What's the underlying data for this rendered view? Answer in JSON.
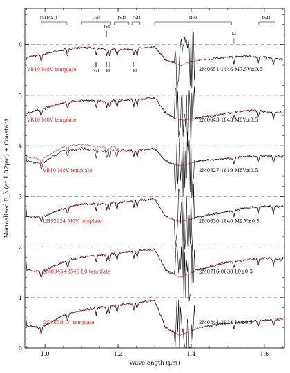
{
  "chart_data": {
    "type": "line",
    "xlabel": "Wavelength (μm)",
    "ylabel": "Normalised F_λ (at 1.32μm) + Constant",
    "xlim": [
      0.945,
      1.655
    ],
    "ylim": [
      0,
      6.72
    ],
    "x_ticks": [
      "1.0",
      "1.2",
      "1.4",
      "1.6"
    ],
    "y_ticks": [
      "0",
      "1",
      "2",
      "3",
      "4",
      "5",
      "6"
    ],
    "x_tick_values": [
      1.0,
      1.2,
      1.4,
      1.6
    ],
    "y_tick_values": [
      0,
      1,
      2,
      3,
      4,
      5,
      6
    ],
    "dashed_reference_levels": [
      1,
      2,
      3,
      4,
      5,
      6
    ],
    "spectra": [
      {
        "object": "2M0651-1446 M7.5V±0.5",
        "template": "VB10 M8V template",
        "offset": 5,
        "ref_value": 1.0,
        "points": [
          [
            0.95,
            0.75
          ],
          [
            0.99,
            0.8
          ],
          [
            1.05,
            0.9
          ],
          [
            1.1,
            0.95
          ],
          [
            1.15,
            0.92
          ],
          [
            1.2,
            0.9
          ],
          [
            1.25,
            0.92
          ],
          [
            1.3,
            0.95
          ],
          [
            1.33,
            0.7
          ],
          [
            1.37,
            0.6
          ],
          [
            1.42,
            0.7
          ],
          [
            1.5,
            0.75
          ],
          [
            1.55,
            0.78
          ],
          [
            1.6,
            0.75
          ],
          [
            1.655,
            0.7
          ]
        ]
      },
      {
        "object": "2M0643-1843 M8V±0.5",
        "template": "VB10 M8V template",
        "offset": 4,
        "ref_value": 1.0,
        "points": [
          [
            0.95,
            0.65
          ],
          [
            0.99,
            0.72
          ],
          [
            1.05,
            0.85
          ],
          [
            1.1,
            0.9
          ],
          [
            1.15,
            0.88
          ],
          [
            1.2,
            0.9
          ],
          [
            1.25,
            0.92
          ],
          [
            1.3,
            0.95
          ],
          [
            1.33,
            0.65
          ],
          [
            1.37,
            0.5
          ],
          [
            1.42,
            0.55
          ],
          [
            1.5,
            0.65
          ],
          [
            1.55,
            0.7
          ],
          [
            1.6,
            0.68
          ],
          [
            1.655,
            0.65
          ]
        ]
      },
      {
        "object": "2M0827-1619 M8V±0.5",
        "template": "VB10 M8V template",
        "offset": 3,
        "ref_value": 1.0,
        "points": [
          [
            0.95,
            0.7
          ],
          [
            0.99,
            0.65
          ],
          [
            1.05,
            0.9
          ],
          [
            1.1,
            0.95
          ],
          [
            1.15,
            0.9
          ],
          [
            1.2,
            0.9
          ],
          [
            1.25,
            0.92
          ],
          [
            1.3,
            0.95
          ],
          [
            1.33,
            0.7
          ],
          [
            1.37,
            0.6
          ],
          [
            1.42,
            0.7
          ],
          [
            1.5,
            0.75
          ],
          [
            1.55,
            0.78
          ],
          [
            1.6,
            0.8
          ],
          [
            1.655,
            0.78
          ]
        ]
      },
      {
        "object": "2M0630-1840 M9.V±0.5",
        "template": "LHS2924 M9V template",
        "offset": 2,
        "ref_value": 1.0,
        "points": [
          [
            0.95,
            0.6
          ],
          [
            0.99,
            0.6
          ],
          [
            1.05,
            0.75
          ],
          [
            1.1,
            0.85
          ],
          [
            1.15,
            0.85
          ],
          [
            1.2,
            0.88
          ],
          [
            1.25,
            0.92
          ],
          [
            1.3,
            0.95
          ],
          [
            1.33,
            0.6
          ],
          [
            1.37,
            0.5
          ],
          [
            1.42,
            0.6
          ],
          [
            1.5,
            0.7
          ],
          [
            1.55,
            0.78
          ],
          [
            1.6,
            0.8
          ],
          [
            1.655,
            0.8
          ]
        ]
      },
      {
        "object": "2M0716-0630 L0±0.5",
        "template": "2M0345+2540 L0 template",
        "offset": 1,
        "ref_value": 1.0,
        "points": [
          [
            0.95,
            0.55
          ],
          [
            0.99,
            0.5
          ],
          [
            1.05,
            0.7
          ],
          [
            1.1,
            0.8
          ],
          [
            1.15,
            0.85
          ],
          [
            1.2,
            0.88
          ],
          [
            1.25,
            0.92
          ],
          [
            1.3,
            0.95
          ],
          [
            1.33,
            0.55
          ],
          [
            1.37,
            0.4
          ],
          [
            1.42,
            0.55
          ],
          [
            1.5,
            0.7
          ],
          [
            1.55,
            0.75
          ],
          [
            1.6,
            0.78
          ],
          [
            1.655,
            0.75
          ]
        ]
      },
      {
        "object": "2M0844-2924 L4±0.5",
        "template": "GD165B L4 template",
        "offset": 0,
        "ref_value": 1.0,
        "points": [
          [
            0.95,
            0.45
          ],
          [
            0.99,
            0.4
          ],
          [
            1.05,
            0.65
          ],
          [
            1.1,
            0.75
          ],
          [
            1.15,
            0.8
          ],
          [
            1.2,
            0.85
          ],
          [
            1.25,
            0.9
          ],
          [
            1.3,
            0.95
          ],
          [
            1.33,
            0.4
          ],
          [
            1.37,
            0.25
          ],
          [
            1.42,
            0.4
          ],
          [
            1.5,
            0.5
          ],
          [
            1.55,
            0.52
          ],
          [
            1.6,
            0.55
          ],
          [
            1.655,
            0.58
          ]
        ]
      }
    ],
    "features": {
      "FeH_CrH": "FeH/CrH",
      "H2O_a": "H₂O",
      "FeH_a": "FeH",
      "FeH_b": "FeH",
      "FeI": "FeI",
      "H2O_b": "H₂O",
      "KI_a": "KI",
      "FeH_c": "FeH",
      "NaI": "NaI",
      "KI_b": "KI",
      "KI_c": "KI"
    }
  },
  "colors": {
    "observed": "#000000",
    "template": "#e0281e",
    "template_label": "#e0281e",
    "dashed": "#7f7f7f"
  }
}
